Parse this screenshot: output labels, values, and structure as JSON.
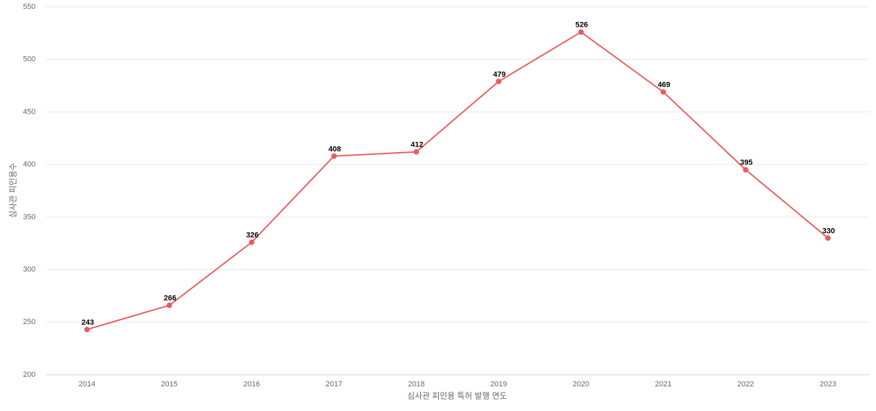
{
  "chart_data": {
    "type": "line",
    "x_label": "심사관 피인용 특허 발행 연도",
    "y_label": "심사관 피인용수",
    "categories": [
      "2014",
      "2015",
      "2016",
      "2017",
      "2018",
      "2019",
      "2020",
      "2021",
      "2022",
      "2023"
    ],
    "values": [
      243,
      266,
      326,
      408,
      412,
      479,
      526,
      469,
      395,
      330
    ],
    "color": "#ec5b5b",
    "ylim": [
      200,
      550
    ],
    "yticks": [
      200,
      250,
      300,
      350,
      400,
      450,
      500,
      550
    ],
    "grid": true
  }
}
